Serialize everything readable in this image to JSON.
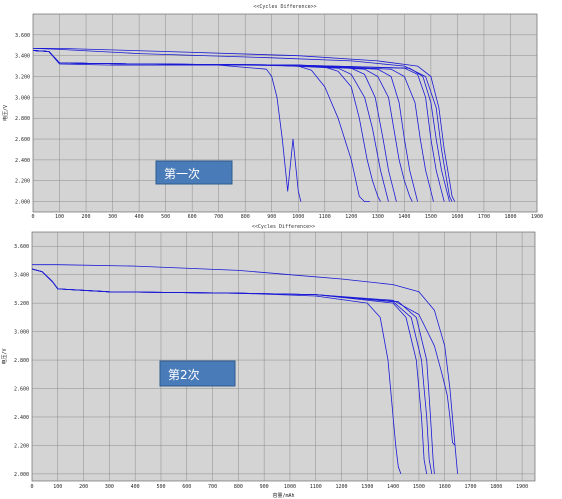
{
  "colors": {
    "plot_background": "#d4d4d4",
    "grid": "#8c8c8c",
    "series": "#1a1ad6",
    "label_box_fill": "#4a7bb9",
    "label_box_stroke": "#2f5b8f"
  },
  "chart_data": [
    {
      "type": "line",
      "title": "<<Cycles Difference>>",
      "xlabel": "",
      "ylabel": "电压/V",
      "xlim": [
        0,
        1900
      ],
      "ylim": [
        1.9,
        3.8
      ],
      "x_ticks": [
        0,
        100,
        200,
        300,
        400,
        500,
        600,
        700,
        800,
        900,
        1000,
        1100,
        1200,
        1300,
        1400,
        1500,
        1600,
        1700,
        1800,
        1900
      ],
      "y_ticks": [
        2.0,
        2.2,
        2.4,
        2.6,
        2.8,
        3.0,
        3.2,
        3.4,
        3.6
      ],
      "y_tick_labels": [
        "2.000",
        "2.200",
        "2.400",
        "2.600",
        "2.800",
        "3.000",
        "3.200",
        "3.400",
        "3.600"
      ],
      "grid": true,
      "legend": "none",
      "annotation": "第一次",
      "series": [
        {
          "x": [
            0,
            60,
            100,
            300,
            700,
            880,
            900,
            920,
            940,
            960,
            980,
            1000,
            1010
          ],
          "y": [
            3.45,
            3.44,
            3.32,
            3.31,
            3.31,
            3.27,
            3.2,
            3.0,
            2.6,
            2.1,
            2.6,
            2.1,
            2.0
          ]
        },
        {
          "x": [
            0,
            60,
            100,
            400,
            800,
            1000,
            1050,
            1100,
            1150,
            1200,
            1230,
            1250,
            1270
          ],
          "y": [
            3.45,
            3.44,
            3.33,
            3.32,
            3.31,
            3.3,
            3.26,
            3.1,
            2.8,
            2.4,
            2.05,
            2.0,
            2.0
          ]
        },
        {
          "x": [
            0,
            60,
            100,
            400,
            900,
            1100,
            1150,
            1200,
            1230,
            1260,
            1280,
            1300,
            1310
          ],
          "y": [
            3.45,
            3.44,
            3.33,
            3.32,
            3.31,
            3.29,
            3.25,
            3.1,
            2.8,
            2.4,
            2.2,
            2.05,
            2.0
          ]
        },
        {
          "x": [
            0,
            60,
            100,
            400,
            900,
            1150,
            1200,
            1250,
            1280,
            1310,
            1330,
            1340
          ],
          "y": [
            3.45,
            3.44,
            3.33,
            3.32,
            3.31,
            3.28,
            3.22,
            3.0,
            2.7,
            2.3,
            2.1,
            2.0
          ]
        },
        {
          "x": [
            0,
            60,
            100,
            400,
            900,
            1200,
            1250,
            1290,
            1320,
            1340,
            1360,
            1370
          ],
          "y": [
            3.45,
            3.44,
            3.33,
            3.32,
            3.31,
            3.28,
            3.22,
            3.0,
            2.6,
            2.3,
            2.1,
            2.0
          ]
        },
        {
          "x": [
            0,
            60,
            100,
            400,
            1000,
            1250,
            1300,
            1340,
            1360,
            1380,
            1400,
            1420,
            1430
          ],
          "y": [
            3.45,
            3.44,
            3.33,
            3.32,
            3.31,
            3.27,
            3.2,
            3.0,
            2.7,
            2.4,
            2.2,
            2.05,
            2.0
          ]
        },
        {
          "x": [
            0,
            60,
            100,
            400,
            1000,
            1300,
            1350,
            1380,
            1400,
            1420,
            1440,
            1450
          ],
          "y": [
            3.45,
            3.44,
            3.33,
            3.32,
            3.31,
            3.27,
            3.2,
            2.95,
            2.6,
            2.3,
            2.1,
            2.0
          ]
        },
        {
          "x": [
            0,
            60,
            100,
            400,
            1000,
            1350,
            1400,
            1440,
            1460,
            1480,
            1500,
            1510
          ],
          "y": [
            3.45,
            3.44,
            3.33,
            3.32,
            3.31,
            3.27,
            3.2,
            2.95,
            2.6,
            2.3,
            2.1,
            2.0
          ]
        },
        {
          "x": [
            0,
            60,
            100,
            400,
            1000,
            1400,
            1450,
            1480,
            1500,
            1520,
            1540,
            1550
          ],
          "y": [
            3.45,
            3.44,
            3.33,
            3.32,
            3.31,
            3.28,
            3.22,
            3.0,
            2.6,
            2.3,
            2.1,
            2.0
          ]
        },
        {
          "x": [
            0,
            60,
            100,
            400,
            1000,
            1420,
            1470,
            1500,
            1520,
            1540,
            1560,
            1570
          ],
          "y": [
            3.45,
            3.44,
            3.33,
            3.32,
            3.31,
            3.28,
            3.2,
            2.95,
            2.6,
            2.3,
            2.1,
            2.0
          ]
        },
        {
          "x": [
            0,
            100,
            400,
            900,
            1200,
            1400,
            1480,
            1520,
            1540,
            1560,
            1570,
            1580
          ],
          "y": [
            3.47,
            3.46,
            3.42,
            3.38,
            3.35,
            3.3,
            3.2,
            2.9,
            2.5,
            2.2,
            2.05,
            2.0
          ]
        },
        {
          "x": [
            0,
            100,
            500,
            1000,
            1300,
            1450,
            1500,
            1530,
            1550,
            1570,
            1580,
            1590
          ],
          "y": [
            3.47,
            3.47,
            3.44,
            3.4,
            3.35,
            3.3,
            3.2,
            2.9,
            2.5,
            2.2,
            2.05,
            2.0
          ]
        }
      ]
    },
    {
      "type": "line",
      "title": "<<Cycles Difference>>",
      "xlabel": "容量/mAh",
      "ylabel": "电压/V",
      "xlim": [
        0,
        1950
      ],
      "ylim": [
        1.95,
        3.7
      ],
      "x_ticks": [
        0,
        100,
        200,
        300,
        400,
        500,
        600,
        700,
        800,
        900,
        1000,
        1100,
        1200,
        1300,
        1400,
        1500,
        1600,
        1700,
        1800,
        1900
      ],
      "y_ticks": [
        2.0,
        2.2,
        2.4,
        2.6,
        2.8,
        3.0,
        3.2,
        3.4,
        3.6
      ],
      "y_tick_labels": [
        "2.000",
        "2.200",
        "2.400",
        "2.600",
        "2.800",
        "3.000",
        "3.200",
        "3.400",
        "3.600"
      ],
      "grid": true,
      "legend": "none",
      "annotation": "第2次",
      "series": [
        {
          "x": [
            0,
            40,
            80,
            100,
            300,
            800,
            1100,
            1300,
            1350,
            1380,
            1400,
            1410,
            1420,
            1430
          ],
          "y": [
            3.44,
            3.42,
            3.35,
            3.3,
            3.28,
            3.27,
            3.25,
            3.2,
            3.1,
            2.8,
            2.4,
            2.2,
            2.05,
            2.0
          ]
        },
        {
          "x": [
            0,
            40,
            80,
            100,
            300,
            800,
            1100,
            1400,
            1450,
            1490,
            1510,
            1520,
            1530
          ],
          "y": [
            3.44,
            3.42,
            3.35,
            3.3,
            3.28,
            3.27,
            3.26,
            3.2,
            3.1,
            2.8,
            2.4,
            2.1,
            2.0
          ]
        },
        {
          "x": [
            0,
            40,
            80,
            100,
            300,
            800,
            1100,
            1400,
            1470,
            1510,
            1530,
            1540,
            1550
          ],
          "y": [
            3.44,
            3.42,
            3.35,
            3.3,
            3.28,
            3.27,
            3.26,
            3.21,
            3.1,
            2.8,
            2.4,
            2.1,
            2.0
          ]
        },
        {
          "x": [
            0,
            40,
            80,
            100,
            300,
            800,
            1100,
            1420,
            1490,
            1530,
            1545,
            1555,
            1560
          ],
          "y": [
            3.44,
            3.42,
            3.35,
            3.3,
            3.28,
            3.27,
            3.26,
            3.21,
            3.1,
            2.8,
            2.4,
            2.1,
            2.0
          ]
        },
        {
          "x": [
            0,
            40,
            80,
            100,
            300,
            800,
            1100,
            1400,
            1500,
            1560,
            1590,
            1610,
            1620,
            1630,
            1640
          ],
          "y": [
            3.44,
            3.42,
            3.35,
            3.3,
            3.28,
            3.27,
            3.26,
            3.22,
            3.12,
            2.9,
            2.7,
            2.55,
            2.4,
            2.22,
            2.2
          ]
        },
        {
          "x": [
            0,
            100,
            400,
            800,
            1000,
            1200,
            1400,
            1500,
            1560,
            1600,
            1620,
            1635,
            1645,
            1650
          ],
          "y": [
            3.47,
            3.47,
            3.46,
            3.43,
            3.4,
            3.37,
            3.33,
            3.28,
            3.15,
            2.9,
            2.6,
            2.3,
            2.1,
            2.0
          ]
        }
      ]
    }
  ]
}
